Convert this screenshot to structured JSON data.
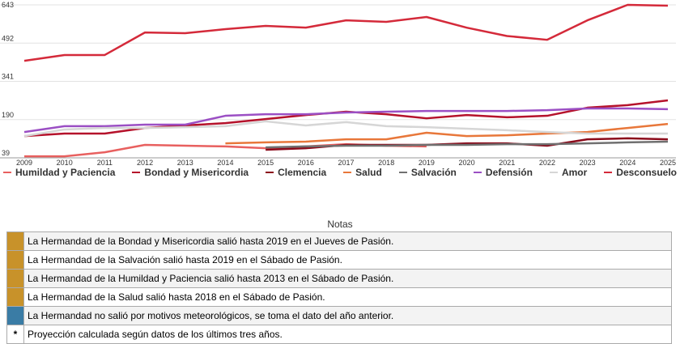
{
  "chart_data": {
    "type": "line",
    "categories": [
      "2009",
      "2010",
      "2011",
      "2012",
      "2013",
      "2014",
      "2015",
      "2016",
      "2017",
      "2018",
      "2019",
      "2020",
      "2021",
      "2022",
      "2023",
      "2024",
      "2025"
    ],
    "ylim": [
      39,
      643
    ],
    "yticks": [
      39,
      190,
      341,
      492,
      643
    ],
    "grid": true,
    "series": [
      {
        "name": "Humildad y Paciencia",
        "color": "#e8605f",
        "values": [
          45,
          45,
          61,
          90,
          87,
          84,
          77,
          84,
          93,
          87,
          84,
          null,
          null,
          null,
          null,
          null,
          null
        ]
      },
      {
        "name": "Bondad y Misericordia",
        "color": "#b5122b",
        "values": [
          125,
          135,
          135,
          157,
          167,
          176,
          192,
          208,
          221,
          211,
          195,
          208,
          199,
          205,
          237,
          247,
          266
        ]
      },
      {
        "name": "Clemencia",
        "color": "#8b0a1a",
        "values": [
          null,
          null,
          null,
          null,
          null,
          null,
          71,
          77,
          90,
          90,
          90,
          96,
          96,
          87,
          112,
          116,
          112
        ]
      },
      {
        "name": "Salud",
        "color": "#e8773a",
        "values": [
          null,
          null,
          null,
          null,
          null,
          96,
          100,
          103,
          112,
          112,
          138,
          125,
          128,
          135,
          141,
          157,
          173
        ]
      },
      {
        "name": "Salvación",
        "color": "#707070",
        "values": [
          null,
          null,
          null,
          null,
          null,
          null,
          80,
          84,
          87,
          87,
          90,
          90,
          93,
          93,
          96,
          100,
          103
        ]
      },
      {
        "name": "Defensión",
        "color": "#9b4fc4",
        "values": [
          141,
          164,
          164,
          170,
          170,
          205,
          211,
          211,
          218,
          221,
          224,
          224,
          224,
          227,
          234,
          234,
          231
        ]
      },
      {
        "name": "Amor",
        "color": "#d6d6d6",
        "values": [
          125,
          151,
          157,
          157,
          160,
          164,
          183,
          167,
          180,
          164,
          160,
          154,
          148,
          141,
          135,
          135,
          135
        ]
      },
      {
        "name": "Desconsuelo",
        "color": "#d42a3a",
        "values": [
          422,
          445,
          445,
          534,
          531,
          547,
          560,
          553,
          582,
          576,
          595,
          553,
          520,
          505,
          582,
          643,
          640
        ]
      }
    ]
  },
  "notes": {
    "title": "Notas",
    "rows": [
      {
        "color": "#c8922a",
        "text": "La Hermandad de la Bondad y Misericordia salió hasta 2019 en el Jueves de Pasión."
      },
      {
        "color": "#c8922a",
        "text": "La Hermandad de la Salvación salió hasta 2019 en el Sábado de Pasión."
      },
      {
        "color": "#c8922a",
        "text": "La Hermandad de la Humildad y Paciencia salió hasta 2013 en el Sábado de Pasión."
      },
      {
        "color": "#c8922a",
        "text": "La Hermandad de la Salud salió hasta 2018 en el Sábado de Pasión."
      },
      {
        "color": "#3a7ca5",
        "text": "La Hermandad no salió por motivos meteorológicos, se toma el dato del año anterior."
      },
      {
        "marker": "*",
        "text": "Proyección calculada según datos de los últimos tres años."
      }
    ]
  }
}
